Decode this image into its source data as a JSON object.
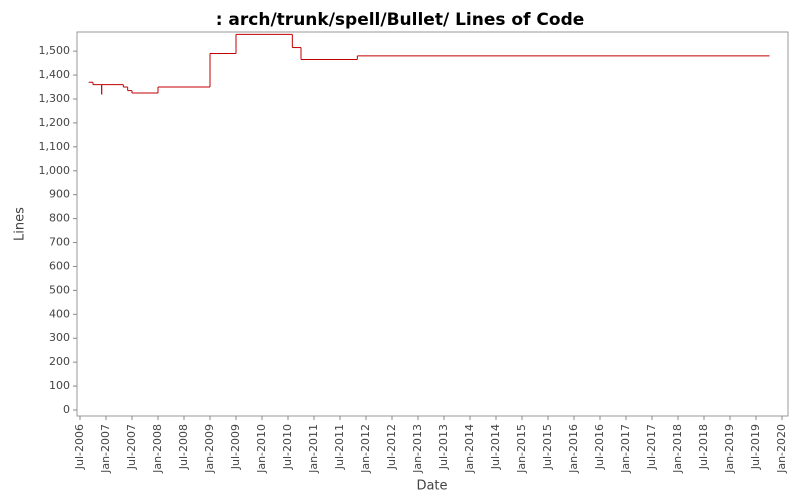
{
  "chart_data": {
    "type": "step",
    "title": ": arch/trunk/spell/Bullet/ Lines of Code",
    "x_label": "Date",
    "y_label": "Lines",
    "x": [
      "2006-09",
      "2006-10",
      "2006-12",
      "2006-12",
      "2007-05",
      "2007-06",
      "2007-07",
      "2008-01",
      "2009-01",
      "2009-07",
      "2009-07",
      "2010-08",
      "2010-10",
      "2011-11",
      "2019-10"
    ],
    "series": [
      {
        "name": "Lines",
        "color": "#c00000",
        "values": [
          1370,
          1360,
          1320,
          1360,
          1350,
          1335,
          1325,
          1350,
          1490,
          1510,
          1570,
          1515,
          1465,
          1480,
          1480
        ]
      }
    ],
    "xlim": [
      "2006-07",
      "2020-01"
    ],
    "xticks": [
      {
        "value": "2006-07",
        "label": "Jul-2006"
      },
      {
        "value": "2007-01",
        "label": "Jan-2007"
      },
      {
        "value": "2007-07",
        "label": "Jul-2007"
      },
      {
        "value": "2008-01",
        "label": "Jan-2008"
      },
      {
        "value": "2008-07",
        "label": "Jul-2008"
      },
      {
        "value": "2009-01",
        "label": "Jan-2009"
      },
      {
        "value": "2009-07",
        "label": "Jul-2009"
      },
      {
        "value": "2010-01",
        "label": "Jan-2010"
      },
      {
        "value": "2010-07",
        "label": "Jul-2010"
      },
      {
        "value": "2011-01",
        "label": "Jan-2011"
      },
      {
        "value": "2011-07",
        "label": "Jul-2011"
      },
      {
        "value": "2012-01",
        "label": "Jan-2012"
      },
      {
        "value": "2012-07",
        "label": "Jul-2012"
      },
      {
        "value": "2013-01",
        "label": "Jan-2013"
      },
      {
        "value": "2013-07",
        "label": "Jul-2013"
      },
      {
        "value": "2014-01",
        "label": "Jan-2014"
      },
      {
        "value": "2014-07",
        "label": "Jul-2014"
      },
      {
        "value": "2015-01",
        "label": "Jan-2015"
      },
      {
        "value": "2015-07",
        "label": "Jul-2015"
      },
      {
        "value": "2016-01",
        "label": "Jan-2016"
      },
      {
        "value": "2016-07",
        "label": "Jul-2016"
      },
      {
        "value": "2017-01",
        "label": "Jan-2017"
      },
      {
        "value": "2017-07",
        "label": "Jul-2017"
      },
      {
        "value": "2018-01",
        "label": "Jan-2018"
      },
      {
        "value": "2018-07",
        "label": "Jul-2018"
      },
      {
        "value": "2019-01",
        "label": "Jan-2019"
      },
      {
        "value": "2019-07",
        "label": "Jul-2019"
      },
      {
        "value": "2020-01",
        "label": "Jan-2020"
      }
    ],
    "ylim": [
      0,
      1580
    ],
    "yticks": [
      0,
      100,
      200,
      300,
      400,
      500,
      600,
      700,
      800,
      900,
      {
        "value": 1000,
        "label": "1,000"
      },
      {
        "value": 1100,
        "label": "1,100"
      },
      {
        "value": 1200,
        "label": "1,200"
      },
      {
        "value": 1300,
        "label": "1,300"
      },
      {
        "value": 1400,
        "label": "1,400"
      },
      {
        "value": 1500,
        "label": "1,500"
      }
    ],
    "grid": false
  }
}
